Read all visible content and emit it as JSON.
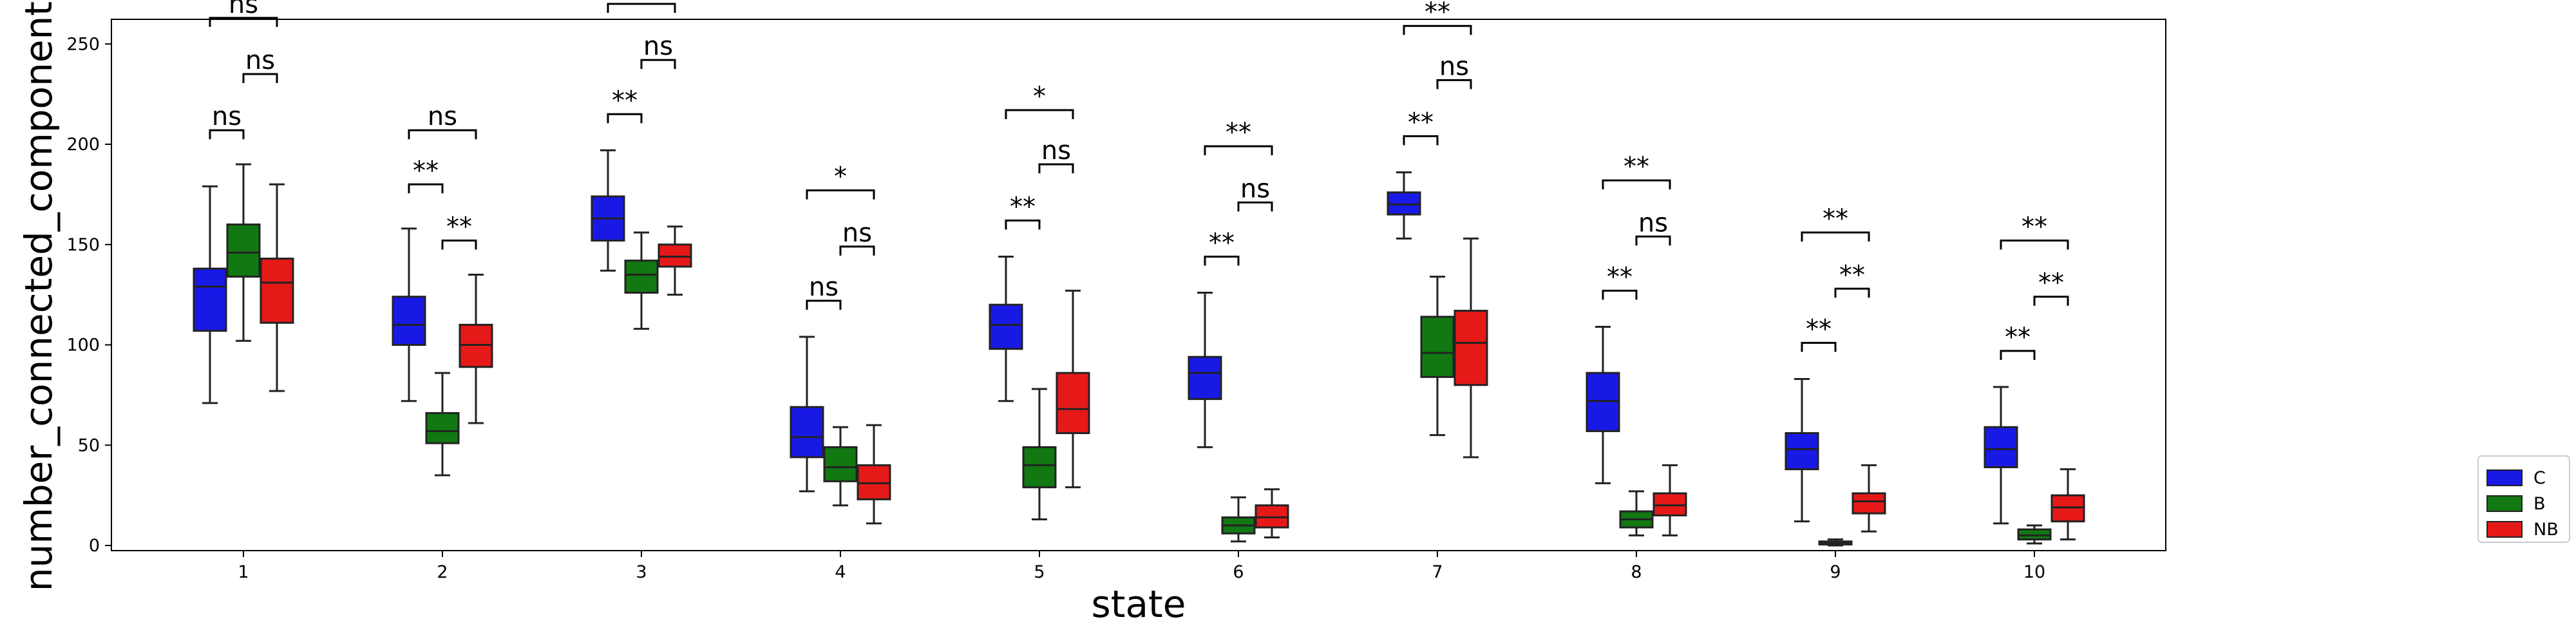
{
  "chart_data": {
    "type": "box",
    "xlabel": "state",
    "ylabel": "number_connected_components",
    "categories": [
      "1",
      "2",
      "3",
      "4",
      "5",
      "6",
      "7",
      "8",
      "9",
      "10"
    ],
    "yticks": [
      0,
      50,
      100,
      150,
      200,
      250
    ],
    "ylim": [
      -12,
      295
    ],
    "grid": false,
    "legend_position": "outside-right-bottom",
    "series": [
      {
        "name": "C",
        "color": "#1919e6",
        "boxes": [
          {
            "whislo": 71,
            "q1": 107,
            "median": 129,
            "q3": 138,
            "whishi": 179
          },
          {
            "whislo": 72,
            "q1": 100,
            "median": 110,
            "q3": 124,
            "whishi": 158
          },
          {
            "whislo": 137,
            "q1": 152,
            "median": 163,
            "q3": 174,
            "whishi": 197
          },
          {
            "whislo": 27,
            "q1": 44,
            "median": 54,
            "q3": 69,
            "whishi": 104
          },
          {
            "whislo": 72,
            "q1": 98,
            "median": 110,
            "q3": 120,
            "whishi": 144
          },
          {
            "whislo": 49,
            "q1": 73,
            "median": 86,
            "q3": 94,
            "whishi": 126
          },
          {
            "whislo": 153,
            "q1": 165,
            "median": 170,
            "q3": 176,
            "whishi": 186
          },
          {
            "whislo": 31,
            "q1": 57,
            "median": 72,
            "q3": 86,
            "whishi": 109
          },
          {
            "whislo": 12,
            "q1": 38,
            "median": 48,
            "q3": 56,
            "whishi": 83
          },
          {
            "whislo": 11,
            "q1": 39,
            "median": 48,
            "q3": 59,
            "whishi": 79
          }
        ]
      },
      {
        "name": "B",
        "color": "#127812",
        "boxes": [
          {
            "whislo": 102,
            "q1": 134,
            "median": 146,
            "q3": 160,
            "whishi": 190
          },
          {
            "whislo": 35,
            "q1": 51,
            "median": 57,
            "q3": 66,
            "whishi": 86
          },
          {
            "whislo": 108,
            "q1": 126,
            "median": 135,
            "q3": 142,
            "whishi": 156
          },
          {
            "whislo": 20,
            "q1": 32,
            "median": 39,
            "q3": 49,
            "whishi": 59
          },
          {
            "whislo": 13,
            "q1": 29,
            "median": 40,
            "q3": 49,
            "whishi": 78
          },
          {
            "whislo": 2,
            "q1": 6,
            "median": 10,
            "q3": 14,
            "whishi": 24
          },
          {
            "whislo": 55,
            "q1": 84,
            "median": 96,
            "q3": 114,
            "whishi": 134
          },
          {
            "whislo": 5,
            "q1": 9,
            "median": 13,
            "q3": 17,
            "whishi": 27
          },
          {
            "whislo": 0,
            "q1": 0.5,
            "median": 1,
            "q3": 2,
            "whishi": 3
          },
          {
            "whislo": 1,
            "q1": 3,
            "median": 5,
            "q3": 8,
            "whishi": 10
          }
        ]
      },
      {
        "name": "NB",
        "color": "#e61919",
        "boxes": [
          {
            "whislo": 77,
            "q1": 111,
            "median": 131,
            "q3": 143,
            "whishi": 180
          },
          {
            "whislo": 61,
            "q1": 89,
            "median": 100,
            "q3": 110,
            "whishi": 135
          },
          {
            "whislo": 125,
            "q1": 139,
            "median": 144,
            "q3": 150,
            "whishi": 159
          },
          {
            "whislo": 11,
            "q1": 23,
            "median": 31,
            "q3": 40,
            "whishi": 60
          },
          {
            "whislo": 29,
            "q1": 56,
            "median": 68,
            "q3": 86,
            "whishi": 127
          },
          {
            "whislo": 4,
            "q1": 9,
            "median": 14,
            "q3": 20,
            "whishi": 28
          },
          {
            "whislo": 44,
            "q1": 80,
            "median": 101,
            "q3": 117,
            "whishi": 153
          },
          {
            "whislo": 5,
            "q1": 15,
            "median": 20,
            "q3": 26,
            "whishi": 40
          },
          {
            "whislo": 7,
            "q1": 16,
            "median": 22,
            "q3": 26,
            "whishi": 40
          },
          {
            "whislo": 3,
            "q1": 12,
            "median": 19,
            "q3": 25,
            "whishi": 38
          }
        ]
      }
    ],
    "annotations": [
      {
        "category": "1",
        "from": "C",
        "to": "B",
        "label": "ns",
        "level": 207
      },
      {
        "category": "1",
        "from": "B",
        "to": "NB",
        "label": "ns",
        "level": 235
      },
      {
        "category": "1",
        "from": "C",
        "to": "NB",
        "label": "ns",
        "level": 263
      },
      {
        "category": "2",
        "from": "C",
        "to": "B",
        "label": "**",
        "level": 180
      },
      {
        "category": "2",
        "from": "B",
        "to": "NB",
        "label": "**",
        "level": 152
      },
      {
        "category": "2",
        "from": "C",
        "to": "NB",
        "label": "ns",
        "level": 207
      },
      {
        "category": "3",
        "from": "C",
        "to": "B",
        "label": "**",
        "level": 215
      },
      {
        "category": "3",
        "from": "B",
        "to": "NB",
        "label": "ns",
        "level": 242
      },
      {
        "category": "3",
        "from": "C",
        "to": "NB",
        "label": "*",
        "level": 270
      },
      {
        "category": "4",
        "from": "C",
        "to": "B",
        "label": "ns",
        "level": 122
      },
      {
        "category": "4",
        "from": "B",
        "to": "NB",
        "label": "ns",
        "level": 149
      },
      {
        "category": "4",
        "from": "C",
        "to": "NB",
        "label": "*",
        "level": 177
      },
      {
        "category": "5",
        "from": "C",
        "to": "B",
        "label": "**",
        "level": 162
      },
      {
        "category": "5",
        "from": "B",
        "to": "NB",
        "label": "ns",
        "level": 190
      },
      {
        "category": "5",
        "from": "C",
        "to": "NB",
        "label": "*",
        "level": 217
      },
      {
        "category": "6",
        "from": "C",
        "to": "B",
        "label": "**",
        "level": 144
      },
      {
        "category": "6",
        "from": "B",
        "to": "NB",
        "label": "ns",
        "level": 171
      },
      {
        "category": "6",
        "from": "C",
        "to": "NB",
        "label": "**",
        "level": 199
      },
      {
        "category": "7",
        "from": "C",
        "to": "B",
        "label": "**",
        "level": 204
      },
      {
        "category": "7",
        "from": "B",
        "to": "NB",
        "label": "ns",
        "level": 232
      },
      {
        "category": "7",
        "from": "C",
        "to": "NB",
        "label": "**",
        "level": 259
      },
      {
        "category": "8",
        "from": "C",
        "to": "B",
        "label": "**",
        "level": 127
      },
      {
        "category": "8",
        "from": "B",
        "to": "NB",
        "label": "ns",
        "level": 154
      },
      {
        "category": "8",
        "from": "C",
        "to": "NB",
        "label": "**",
        "level": 182
      },
      {
        "category": "9",
        "from": "C",
        "to": "B",
        "label": "**",
        "level": 101
      },
      {
        "category": "9",
        "from": "B",
        "to": "NB",
        "label": "**",
        "level": 128
      },
      {
        "category": "9",
        "from": "C",
        "to": "NB",
        "label": "**",
        "level": 156
      },
      {
        "category": "10",
        "from": "C",
        "to": "B",
        "label": "**",
        "level": 97
      },
      {
        "category": "10",
        "from": "B",
        "to": "NB",
        "label": "**",
        "level": 124
      },
      {
        "category": "10",
        "from": "C",
        "to": "NB",
        "label": "**",
        "level": 152
      }
    ]
  }
}
